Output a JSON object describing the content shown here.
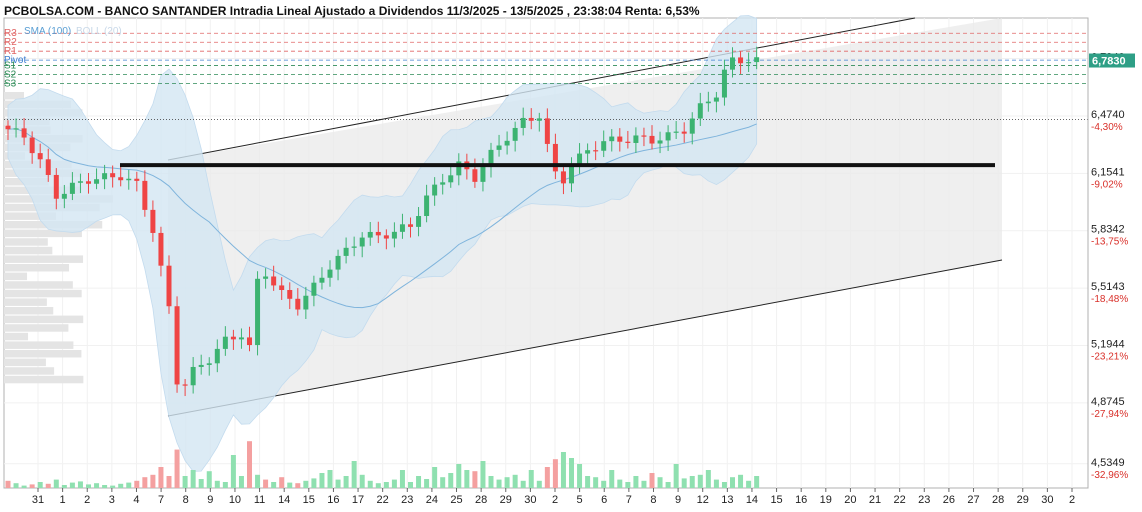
{
  "title": "PCBOLSA.COM - BANCO SANTANDER Intradia Lineal Ajustado a Dividendos 11/3/2025 - 13/5/2025 , 23:38:04 Renta: 6,53%",
  "legend": {
    "sma": "SMA (100)",
    "boll": "BOLL (20)"
  },
  "colors": {
    "up": "#3cb371",
    "down": "#ef4444",
    "volume_up": "#8fe0b0",
    "volume_down": "#f4a0a0",
    "resistance": "#e06666",
    "support": "#2e8b57",
    "pivot": "#3d7fd1",
    "last_price_bg": "#2e9f86",
    "sma": "#7fb4dc",
    "boll_fill": "#d3e6f3"
  },
  "pivot_labels": [
    {
      "label": "R3",
      "value": 6.935,
      "kind": "resistance"
    },
    {
      "label": "R2",
      "value": 6.885,
      "kind": "resistance"
    },
    {
      "label": "R1",
      "value": 6.835,
      "kind": "resistance"
    },
    {
      "label": "Pivot",
      "value": 6.785,
      "kind": "pivot"
    },
    {
      "label": "S1",
      "value": 6.755,
      "kind": "support"
    },
    {
      "label": "S2",
      "value": 6.705,
      "kind": "support"
    },
    {
      "label": "S3",
      "value": 6.655,
      "kind": "support"
    }
  ],
  "last_price": "6,7830",
  "chart_data": {
    "type": "candlestick",
    "ylim": [
      4.4,
      7.02
    ],
    "y_ticks": [
      {
        "value": 6.794,
        "label": "6,7940",
        "pct": ""
      },
      {
        "value": 6.474,
        "label": "6,4740",
        "pct": "-4,30%"
      },
      {
        "value": 6.1541,
        "label": "6,1541",
        "pct": "-9,02%"
      },
      {
        "value": 5.8342,
        "label": "5,8342",
        "pct": "-13,75%"
      },
      {
        "value": 5.5143,
        "label": "5,5143",
        "pct": "-18,48%"
      },
      {
        "value": 5.1944,
        "label": "5,1944",
        "pct": "-23,21%"
      },
      {
        "value": 4.8745,
        "label": "4,8745",
        "pct": "-27,94%"
      },
      {
        "value": 4.5349,
        "label": "4,5349",
        "pct": "-32,96%"
      }
    ],
    "x_ticks": [
      "31",
      "1",
      "2",
      "3",
      "4",
      "7",
      "8",
      "9",
      "10",
      "11",
      "14",
      "15",
      "16",
      "17",
      "22",
      "23",
      "24",
      "25",
      "28",
      "29",
      "30",
      "2",
      "5",
      "6",
      "7",
      "8",
      "9",
      "12",
      "13",
      "14",
      "15",
      "16",
      "19",
      "20",
      "21",
      "22",
      "23",
      "26",
      "27",
      "28",
      "29",
      "30",
      "2"
    ],
    "close_anchors": [
      [
        0,
        6.4
      ],
      [
        2,
        6.36
      ],
      [
        4,
        6.22
      ],
      [
        6,
        6.03
      ],
      [
        8,
        6.08
      ],
      [
        10,
        6.12
      ],
      [
        12,
        6.13
      ],
      [
        14,
        6.14
      ],
      [
        16,
        6.09
      ],
      [
        18,
        5.84
      ],
      [
        20,
        5.4
      ],
      [
        21,
        5.0
      ],
      [
        22,
        4.98
      ],
      [
        23,
        5.05
      ],
      [
        25,
        5.12
      ],
      [
        27,
        5.22
      ],
      [
        29,
        5.26
      ],
      [
        30,
        5.18
      ],
      [
        31,
        5.55
      ],
      [
        32,
        5.6
      ],
      [
        34,
        5.48
      ],
      [
        36,
        5.42
      ],
      [
        38,
        5.52
      ],
      [
        40,
        5.64
      ],
      [
        42,
        5.72
      ],
      [
        44,
        5.81
      ],
      [
        46,
        5.8
      ],
      [
        48,
        5.83
      ],
      [
        50,
        5.86
      ],
      [
        52,
        6.02
      ],
      [
        54,
        6.12
      ],
      [
        56,
        6.2
      ],
      [
        58,
        6.13
      ],
      [
        60,
        6.26
      ],
      [
        62,
        6.36
      ],
      [
        64,
        6.44
      ],
      [
        66,
        6.48
      ],
      [
        67,
        6.3
      ],
      [
        68,
        6.15
      ],
      [
        69,
        6.12
      ],
      [
        70,
        6.2
      ],
      [
        72,
        6.28
      ],
      [
        74,
        6.33
      ],
      [
        76,
        6.34
      ],
      [
        78,
        6.35
      ],
      [
        80,
        6.34
      ],
      [
        82,
        6.36
      ],
      [
        84,
        6.4
      ],
      [
        86,
        6.52
      ],
      [
        88,
        6.6
      ],
      [
        89,
        6.72
      ],
      [
        90,
        6.78
      ],
      [
        92,
        6.79
      ],
      [
        93,
        6.78
      ]
    ],
    "volumes": [
      12,
      8,
      4,
      6,
      10,
      7,
      14,
      5,
      9,
      11,
      6,
      8,
      5,
      4,
      7,
      9,
      12,
      18,
      22,
      35,
      20,
      64,
      20,
      30,
      15,
      28,
      12,
      10,
      55,
      20,
      78,
      22,
      14,
      10,
      18,
      9,
      8,
      12,
      16,
      25,
      30,
      14,
      20,
      45,
      22,
      12,
      8,
      10,
      14,
      30,
      10,
      20,
      15,
      35,
      18,
      25,
      40,
      30,
      28,
      45,
      20,
      14,
      18,
      22,
      12,
      30,
      12,
      35,
      48,
      60,
      50,
      40,
      20,
      18,
      12,
      30,
      14,
      10,
      20,
      12,
      25,
      18,
      10,
      40,
      16,
      20,
      22,
      30,
      14,
      10,
      18,
      22,
      12,
      20
    ],
    "volume_down_idx": [
      0,
      3,
      5,
      16,
      17,
      18,
      19,
      20,
      21,
      30,
      32,
      34,
      36,
      58,
      67,
      68,
      80
    ]
  }
}
